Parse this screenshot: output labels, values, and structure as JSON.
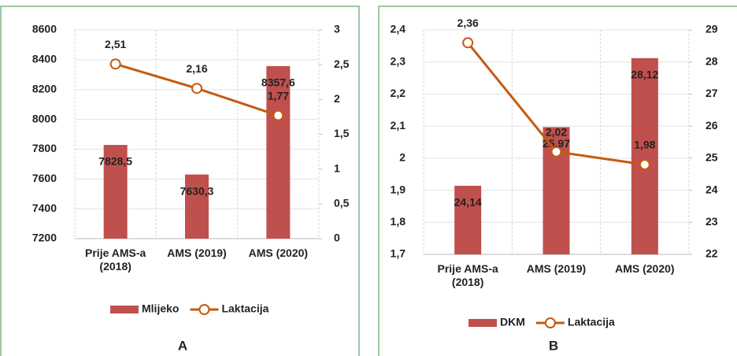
{
  "chart_data": [
    {
      "type": "bar",
      "caption": "A",
      "categories": [
        "Prije AMS-a (2018)",
        "AMS (2019)",
        "AMS (2020)"
      ],
      "series": [
        {
          "name": "Mlijeko",
          "type": "bar",
          "color": "#c0504d",
          "values": [
            7828.5,
            7630.3,
            8357.6
          ],
          "value_labels": [
            "7828,5",
            "7630,3",
            "8357,6"
          ]
        },
        {
          "name": "Laktacija",
          "type": "line",
          "axis": "y2",
          "color": "#c55a11",
          "values": [
            2.51,
            2.16,
            1.77
          ],
          "value_labels": [
            "2,51",
            "2,16",
            "1,77"
          ]
        }
      ],
      "ylim": [
        7200,
        8600
      ],
      "yticks": [
        7200,
        7400,
        7600,
        7800,
        8000,
        8200,
        8400,
        8600
      ],
      "y2lim": [
        0,
        3
      ],
      "y2ticks": [
        0,
        {
          "value": 0.5,
          "label": "0,5"
        },
        1,
        {
          "value": 1.5,
          "label": "1,5"
        },
        2,
        {
          "value": 2.5,
          "label": "2,5"
        },
        3
      ],
      "grid": true
    },
    {
      "type": "bar",
      "caption": "B",
      "categories": [
        "Prije AMS-a (2018)",
        "AMS (2019)",
        "AMS (2020)"
      ],
      "series": [
        {
          "name": "DKM",
          "type": "bar",
          "axis": "y2",
          "color": "#c0504d",
          "values": [
            24.14,
            25.97,
            28.12
          ],
          "value_labels": [
            "24,14",
            "25,97",
            "28,12"
          ]
        },
        {
          "name": "Laktacija",
          "type": "line",
          "color": "#c55a11",
          "values": [
            2.36,
            2.02,
            1.98
          ],
          "value_labels": [
            "2,36",
            "2,02",
            "1,98"
          ]
        }
      ],
      "ylim": [
        1.7,
        2.4
      ],
      "yticks": [
        {
          "value": 1.7,
          "label": "1,7"
        },
        {
          "value": 1.8,
          "label": "1,8"
        },
        {
          "value": 1.9,
          "label": "1,9"
        },
        2,
        {
          "value": 2.1,
          "label": "2,1"
        },
        {
          "value": 2.2,
          "label": "2,2"
        },
        {
          "value": 2.3,
          "label": "2,3"
        },
        {
          "value": 2.4,
          "label": "2,4"
        }
      ],
      "y2lim": [
        22,
        29
      ],
      "y2ticks": [
        22,
        23,
        24,
        25,
        26,
        27,
        28,
        29
      ],
      "grid": true
    }
  ]
}
